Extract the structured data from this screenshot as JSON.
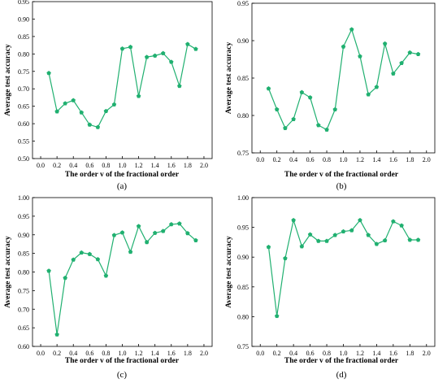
{
  "line_color": "#20b070",
  "chart_data": [
    {
      "type": "line",
      "panel_label": "(a)",
      "xlabel": "The order v of the fractional order",
      "ylabel": "Average test accuracy",
      "xlim": [
        -0.1,
        2.1
      ],
      "ylim": [
        0.5,
        0.95
      ],
      "xticks": [
        "0.0",
        "0.2",
        "0.4",
        "0.6",
        "0.8",
        "1.0",
        "1.2",
        "1.4",
        "1.6",
        "1.8",
        "2.0"
      ],
      "yticks": [
        "0.50",
        "0.55",
        "0.60",
        "0.65",
        "0.70",
        "0.75",
        "0.80",
        "0.85",
        "0.90",
        "0.95"
      ],
      "x": [
        0.1,
        0.2,
        0.3,
        0.4,
        0.5,
        0.6,
        0.7,
        0.8,
        0.9,
        1.0,
        1.1,
        1.2,
        1.3,
        1.4,
        1.5,
        1.6,
        1.7,
        1.8,
        1.9
      ],
      "values": [
        0.745,
        0.635,
        0.658,
        0.667,
        0.632,
        0.597,
        0.59,
        0.636,
        0.655,
        0.815,
        0.82,
        0.679,
        0.791,
        0.795,
        0.802,
        0.777,
        0.708,
        0.828,
        0.814
      ]
    },
    {
      "type": "line",
      "panel_label": "(b)",
      "xlabel": "The order v of the fractional order",
      "ylabel": "Average test accuracy",
      "xlim": [
        -0.1,
        2.1
      ],
      "ylim": [
        0.75,
        0.95
      ],
      "xticks": [
        "0.0",
        "0.2",
        "0.4",
        "0.6",
        "0.8",
        "1.0",
        "1.2",
        "1.4",
        "1.6",
        "1.8",
        "2.0"
      ],
      "yticks": [
        "0.75",
        "0.80",
        "0.85",
        "0.90",
        "0.95"
      ],
      "x": [
        0.1,
        0.2,
        0.3,
        0.4,
        0.5,
        0.6,
        0.7,
        0.8,
        0.9,
        1.0,
        1.1,
        1.2,
        1.3,
        1.4,
        1.5,
        1.6,
        1.7,
        1.8,
        1.9
      ],
      "values": [
        0.836,
        0.808,
        0.783,
        0.795,
        0.831,
        0.824,
        0.787,
        0.781,
        0.808,
        0.892,
        0.915,
        0.879,
        0.828,
        0.838,
        0.896,
        0.856,
        0.87,
        0.884,
        0.882
      ]
    },
    {
      "type": "line",
      "panel_label": "(c)",
      "xlabel": "The order v of the fractional order",
      "ylabel": "Average test accuracy",
      "xlim": [
        -0.1,
        2.1
      ],
      "ylim": [
        0.6,
        1.0
      ],
      "xticks": [
        "0.0",
        "0.2",
        "0.4",
        "0.6",
        "0.8",
        "1.0",
        "1.2",
        "1.4",
        "1.6",
        "1.8",
        "2.0"
      ],
      "yticks": [
        "0.60",
        "0.65",
        "0.70",
        "0.75",
        "0.80",
        "0.85",
        "0.90",
        "0.95",
        "1.00"
      ],
      "x": [
        0.1,
        0.2,
        0.3,
        0.4,
        0.5,
        0.6,
        0.7,
        0.8,
        0.9,
        1.0,
        1.1,
        1.2,
        1.3,
        1.4,
        1.5,
        1.6,
        1.7,
        1.8,
        1.9
      ],
      "values": [
        0.803,
        0.632,
        0.784,
        0.833,
        0.852,
        0.848,
        0.834,
        0.79,
        0.899,
        0.906,
        0.854,
        0.923,
        0.88,
        0.905,
        0.91,
        0.928,
        0.93,
        0.904,
        0.885
      ]
    },
    {
      "type": "line",
      "panel_label": "(d)",
      "xlabel": "The order v of the fractional order",
      "ylabel": "Average test accuracy",
      "xlim": [
        -0.1,
        2.1
      ],
      "ylim": [
        0.75,
        1.0
      ],
      "xticks": [
        "0.0",
        "0.2",
        "0.4",
        "0.6",
        "0.8",
        "1.0",
        "1.2",
        "1.4",
        "1.6",
        "1.8",
        "2.0"
      ],
      "yticks": [
        "0.75",
        "0.80",
        "0.85",
        "0.90",
        "0.95",
        "1.00"
      ],
      "x": [
        0.1,
        0.2,
        0.3,
        0.4,
        0.5,
        0.6,
        0.7,
        0.8,
        0.9,
        1.0,
        1.1,
        1.2,
        1.3,
        1.4,
        1.5,
        1.6,
        1.7,
        1.8,
        1.9
      ],
      "values": [
        0.917,
        0.801,
        0.898,
        0.962,
        0.918,
        0.938,
        0.927,
        0.927,
        0.937,
        0.943,
        0.945,
        0.962,
        0.937,
        0.922,
        0.928,
        0.96,
        0.953,
        0.929,
        0.929
      ]
    }
  ]
}
